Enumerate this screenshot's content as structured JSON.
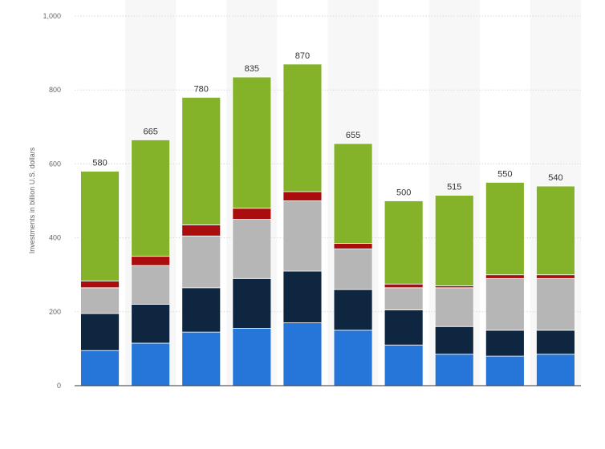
{
  "chart_data": {
    "type": "bar",
    "stacked": true,
    "title": "",
    "xlabel": "",
    "ylabel": "Investments in billion U.S. dollars",
    "ylim": [
      0,
      1000
    ],
    "yticks": [
      "0",
      "200",
      "400",
      "600",
      "800",
      "1,000"
    ],
    "ytick_values": [
      0,
      200,
      400,
      600,
      800,
      1000
    ],
    "grid": true,
    "legend": "none",
    "categories": [
      "",
      "",
      "",
      "",
      "",
      "",
      "",
      "",
      "",
      ""
    ],
    "totals": [
      580,
      665,
      780,
      835,
      870,
      655,
      500,
      515,
      550,
      540
    ],
    "total_labels": [
      "580",
      "665",
      "780",
      "835",
      "870",
      "655",
      "500",
      "515",
      "550",
      "540"
    ],
    "series": [
      {
        "color": "#2675d8",
        "values": [
          95,
          115,
          145,
          155,
          170,
          150,
          110,
          85,
          80,
          85
        ]
      },
      {
        "color": "#0f2640",
        "values": [
          100,
          105,
          120,
          135,
          140,
          110,
          95,
          75,
          70,
          65
        ]
      },
      {
        "color": "#b6b6b6",
        "values": [
          70,
          105,
          140,
          160,
          190,
          110,
          60,
          105,
          140,
          140
        ]
      },
      {
        "color": "#a90d0d",
        "values": [
          18,
          25,
          30,
          30,
          25,
          15,
          10,
          5,
          10,
          10
        ]
      },
      {
        "color": "#84b32a",
        "values": [
          297,
          315,
          345,
          355,
          345,
          270,
          225,
          245,
          250,
          240
        ]
      }
    ]
  }
}
